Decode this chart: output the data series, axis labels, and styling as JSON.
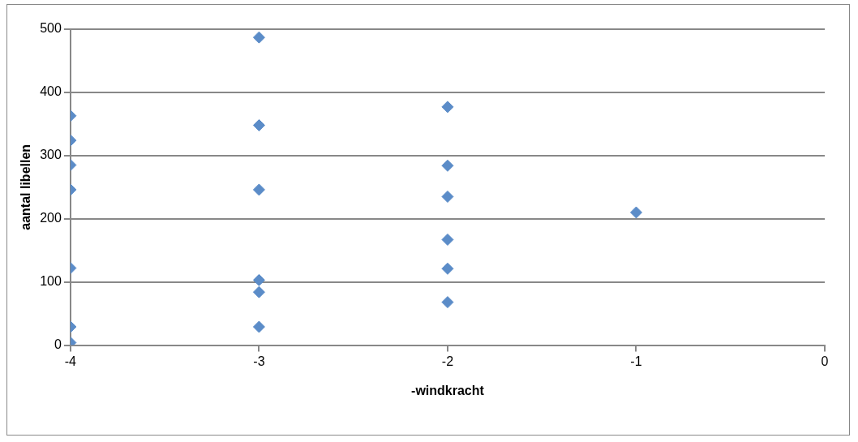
{
  "chart_data": {
    "type": "scatter",
    "xlabel": "-windkracht",
    "ylabel": "aantal libellen",
    "x": [
      -4,
      -4,
      -4,
      -4,
      -4,
      -4,
      -4,
      -3,
      -3,
      -3,
      -3,
      -3,
      -3,
      -2,
      -2,
      -2,
      -2,
      -2,
      -2,
      -1
    ],
    "series": [
      {
        "color": "#5b8cc8",
        "values": [
          363,
          324,
          285,
          246,
          122,
          29,
          4,
          487,
          348,
          246,
          103,
          84,
          29,
          377,
          284,
          235,
          167,
          121,
          68,
          210
        ]
      }
    ],
    "xlim": [
      -4,
      0
    ],
    "xticks": [
      -4,
      -3,
      -2,
      -1,
      0
    ],
    "ylim": [
      0,
      500
    ],
    "yticks": [
      0,
      100,
      200,
      300,
      400,
      500
    ],
    "grid": "y",
    "legend": false,
    "marker": "diamond"
  }
}
